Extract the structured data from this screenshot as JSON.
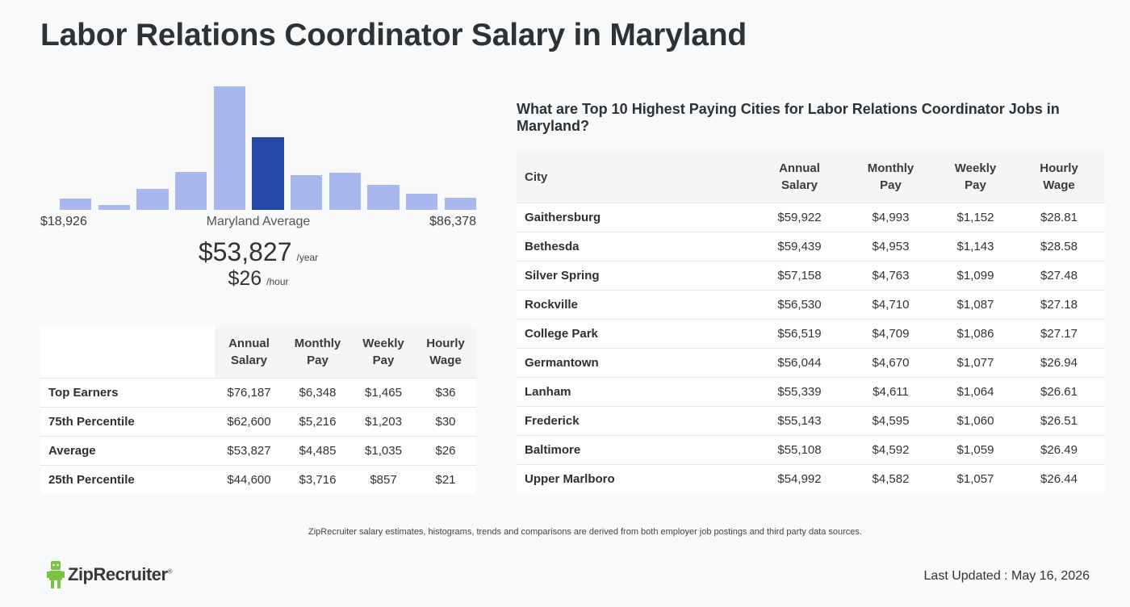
{
  "title": "Labor Relations Coordinator Salary in Maryland",
  "histogram": {
    "min_label": "$18,926",
    "max_label": "$86,378",
    "avg_label": "Maryland Average",
    "heights": [
      0.09,
      0.04,
      0.17,
      0.31,
      1.0,
      0.59,
      0.28,
      0.3,
      0.2,
      0.13,
      0.1
    ],
    "highlight_index": 5,
    "colors": {
      "bar": "#a8b8ef",
      "highlight": "#2648a6"
    }
  },
  "average": {
    "yearly": "$53,827",
    "yearly_unit": "/year",
    "hourly": "$26",
    "hourly_unit": "/hour"
  },
  "percentile_table": {
    "headers": [
      [
        "Annual",
        "Salary"
      ],
      [
        "Monthly",
        "Pay"
      ],
      [
        "Weekly",
        "Pay"
      ],
      [
        "Hourly",
        "Wage"
      ]
    ],
    "rows": [
      {
        "label": "Top Earners",
        "values": [
          "$76,187",
          "$6,348",
          "$1,465",
          "$36"
        ]
      },
      {
        "label": "75th Percentile",
        "values": [
          "$62,600",
          "$5,216",
          "$1,203",
          "$30"
        ]
      },
      {
        "label": "Average",
        "values": [
          "$53,827",
          "$4,485",
          "$1,035",
          "$26"
        ]
      },
      {
        "label": "25th Percentile",
        "values": [
          "$44,600",
          "$3,716",
          "$857",
          "$21"
        ]
      }
    ]
  },
  "cities": {
    "title": "What are Top 10 Highest Paying Cities for Labor Relations Coordinator Jobs in Maryland?",
    "city_header": "City",
    "headers": [
      [
        "Annual",
        "Salary"
      ],
      [
        "Monthly",
        "Pay"
      ],
      [
        "Weekly",
        "Pay"
      ],
      [
        "Hourly",
        "Wage"
      ]
    ],
    "rows": [
      {
        "label": "Gaithersburg",
        "values": [
          "$59,922",
          "$4,993",
          "$1,152",
          "$28.81"
        ]
      },
      {
        "label": "Bethesda",
        "values": [
          "$59,439",
          "$4,953",
          "$1,143",
          "$28.58"
        ]
      },
      {
        "label": "Silver Spring",
        "values": [
          "$57,158",
          "$4,763",
          "$1,099",
          "$27.48"
        ]
      },
      {
        "label": "Rockville",
        "values": [
          "$56,530",
          "$4,710",
          "$1,087",
          "$27.18"
        ]
      },
      {
        "label": "College Park",
        "values": [
          "$56,519",
          "$4,709",
          "$1,086",
          "$27.17"
        ]
      },
      {
        "label": "Germantown",
        "values": [
          "$56,044",
          "$4,670",
          "$1,077",
          "$26.94"
        ]
      },
      {
        "label": "Lanham",
        "values": [
          "$55,339",
          "$4,611",
          "$1,064",
          "$26.61"
        ]
      },
      {
        "label": "Frederick",
        "values": [
          "$55,143",
          "$4,595",
          "$1,060",
          "$26.51"
        ]
      },
      {
        "label": "Baltimore",
        "values": [
          "$55,108",
          "$4,592",
          "$1,059",
          "$26.49"
        ]
      },
      {
        "label": "Upper Marlboro",
        "values": [
          "$54,992",
          "$4,582",
          "$1,057",
          "$26.44"
        ]
      }
    ]
  },
  "disclaimer": "ZipRecruiter salary estimates, histograms, trends and comparisons are derived from both employer job postings and third party data sources.",
  "logo": {
    "text": "ZipRecruiter",
    "mark": "®",
    "icon": "ziprecruiter-mascot-icon",
    "color": "#7cc242"
  },
  "last_updated": "Last Updated : May 16, 2026"
}
